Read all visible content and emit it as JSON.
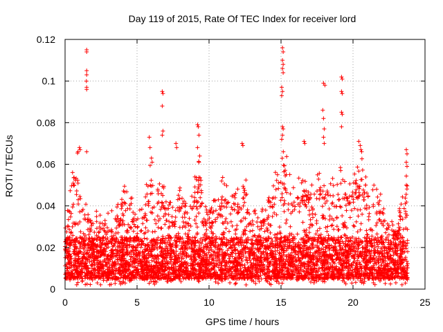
{
  "chart_data": {
    "type": "scatter",
    "title": "Day 119 of 2015, Rate Of TEC Index for receiver lord",
    "xlabel": "GPS time / hours",
    "ylabel": "ROTI / TECUs",
    "xlim": [
      0,
      25
    ],
    "ylim": [
      0,
      0.12
    ],
    "xticks": [
      0,
      5,
      10,
      15,
      20,
      25
    ],
    "yticks": [
      0,
      0.02,
      0.04,
      0.06,
      0.08,
      0.1,
      0.12
    ],
    "xtick_labels": [
      "0",
      "5",
      "10",
      "15",
      "20",
      "25"
    ],
    "ytick_labels": [
      "0",
      "0.02",
      "0.04",
      "0.06",
      "0.08",
      "0.1",
      "0.12"
    ],
    "grid": true,
    "marker": "+",
    "color": "#ff0000",
    "series": [
      {
        "name": "ROTI",
        "x_range": [
          0,
          23.8
        ],
        "background_band": {
          "low": 0.005,
          "high": 0.025
        },
        "envelope": [
          [
            0.0,
            0.03
          ],
          [
            0.3,
            0.045
          ],
          [
            0.5,
            0.06
          ],
          [
            0.8,
            0.065
          ],
          [
            1.0,
            0.068
          ],
          [
            1.2,
            0.05
          ],
          [
            1.5,
            0.04
          ],
          [
            2.0,
            0.04
          ],
          [
            2.5,
            0.035
          ],
          [
            3.0,
            0.038
          ],
          [
            3.5,
            0.04
          ],
          [
            4.0,
            0.05
          ],
          [
            4.5,
            0.055
          ],
          [
            5.0,
            0.035
          ],
          [
            5.5,
            0.045
          ],
          [
            6.0,
            0.065
          ],
          [
            6.3,
            0.06
          ],
          [
            6.8,
            0.055
          ],
          [
            7.0,
            0.05
          ],
          [
            7.5,
            0.04
          ],
          [
            8.0,
            0.05
          ],
          [
            8.5,
            0.04
          ],
          [
            9.0,
            0.055
          ],
          [
            9.3,
            0.065
          ],
          [
            9.8,
            0.04
          ],
          [
            10.0,
            0.04
          ],
          [
            10.5,
            0.045
          ],
          [
            11.0,
            0.055
          ],
          [
            11.5,
            0.05
          ],
          [
            12.0,
            0.05
          ],
          [
            12.5,
            0.055
          ],
          [
            13.0,
            0.04
          ],
          [
            13.5,
            0.04
          ],
          [
            14.0,
            0.04
          ],
          [
            14.5,
            0.055
          ],
          [
            15.0,
            0.065
          ],
          [
            15.3,
            0.07
          ],
          [
            15.8,
            0.05
          ],
          [
            16.3,
            0.055
          ],
          [
            16.8,
            0.058
          ],
          [
            17.3,
            0.05
          ],
          [
            17.8,
            0.065
          ],
          [
            18.3,
            0.06
          ],
          [
            18.8,
            0.05
          ],
          [
            19.3,
            0.065
          ],
          [
            19.8,
            0.05
          ],
          [
            20.3,
            0.06
          ],
          [
            20.7,
            0.065
          ],
          [
            21.2,
            0.055
          ],
          [
            21.6,
            0.052
          ],
          [
            22.0,
            0.045
          ],
          [
            22.5,
            0.035
          ],
          [
            23.0,
            0.03
          ],
          [
            23.5,
            0.05
          ],
          [
            23.8,
            0.06
          ]
        ],
        "notable_points": [
          [
            1.5,
            0.115
          ],
          [
            1.5,
            0.114
          ],
          [
            1.5,
            0.105
          ],
          [
            1.5,
            0.103
          ],
          [
            1.48,
            0.1
          ],
          [
            1.5,
            0.097
          ],
          [
            1.5,
            0.096
          ],
          [
            1.0,
            0.068
          ],
          [
            1.05,
            0.067
          ],
          [
            0.9,
            0.066
          ],
          [
            1.5,
            0.066
          ],
          [
            5.85,
            0.073
          ],
          [
            5.9,
            0.068
          ],
          [
            6.0,
            0.063
          ],
          [
            6.05,
            0.061
          ],
          [
            6.75,
            0.095
          ],
          [
            6.8,
            0.094
          ],
          [
            6.75,
            0.088
          ],
          [
            6.8,
            0.076
          ],
          [
            6.75,
            0.074
          ],
          [
            7.7,
            0.07
          ],
          [
            7.75,
            0.068
          ],
          [
            9.2,
            0.079
          ],
          [
            9.25,
            0.078
          ],
          [
            9.3,
            0.074
          ],
          [
            9.2,
            0.068
          ],
          [
            9.35,
            0.064
          ],
          [
            9.3,
            0.061
          ],
          [
            12.3,
            0.07
          ],
          [
            12.35,
            0.069
          ],
          [
            15.1,
            0.116
          ],
          [
            15.15,
            0.114
          ],
          [
            15.1,
            0.11
          ],
          [
            15.15,
            0.108
          ],
          [
            15.1,
            0.106
          ],
          [
            15.15,
            0.104
          ],
          [
            15.05,
            0.097
          ],
          [
            15.1,
            0.095
          ],
          [
            15.05,
            0.093
          ],
          [
            15.1,
            0.078
          ],
          [
            15.15,
            0.077
          ],
          [
            15.1,
            0.074
          ],
          [
            15.05,
            0.072
          ],
          [
            16.6,
            0.071
          ],
          [
            16.65,
            0.07
          ],
          [
            17.95,
            0.099
          ],
          [
            18.05,
            0.098
          ],
          [
            17.9,
            0.086
          ],
          [
            17.95,
            0.082
          ],
          [
            18.0,
            0.077
          ],
          [
            17.95,
            0.073
          ],
          [
            18.0,
            0.07
          ],
          [
            19.2,
            0.102
          ],
          [
            19.25,
            0.101
          ],
          [
            19.2,
            0.095
          ],
          [
            19.25,
            0.094
          ],
          [
            19.2,
            0.085
          ],
          [
            19.25,
            0.084
          ],
          [
            19.2,
            0.078
          ],
          [
            20.4,
            0.071
          ],
          [
            20.5,
            0.069
          ],
          [
            20.55,
            0.067
          ],
          [
            20.6,
            0.066
          ],
          [
            23.7,
            0.067
          ],
          [
            23.75,
            0.065
          ],
          [
            23.7,
            0.061
          ],
          [
            23.75,
            0.059
          ],
          [
            23.7,
            0.05
          ]
        ]
      }
    ]
  }
}
